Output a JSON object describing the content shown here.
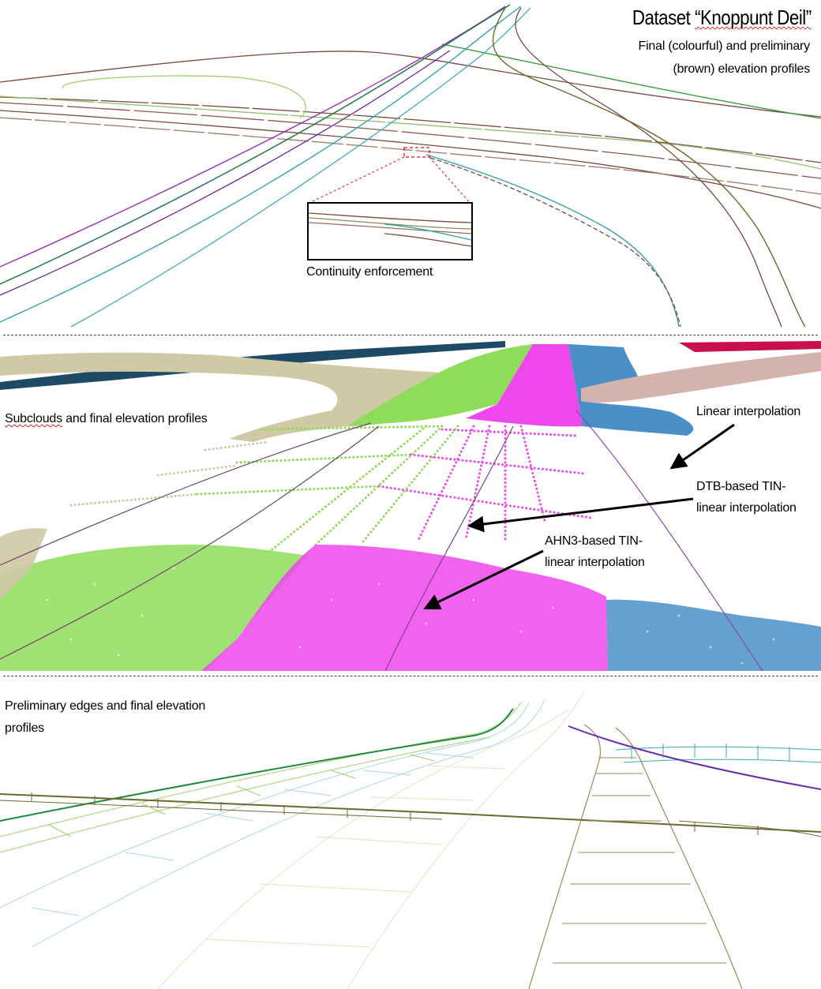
{
  "title": {
    "prefix": "Dataset ",
    "name": "“Knoppunt Deil”"
  },
  "subtitle": {
    "line1": "Final (colourful) and preliminary",
    "line2": "(brown) elevation profiles"
  },
  "top_panel": {
    "inset_label": "Continuity enforcement"
  },
  "middle_panel": {
    "section_label_word": "Subclouds",
    "section_label_rest": " and final elevation profiles",
    "annotations": {
      "linear": "Linear interpolation",
      "dtb_line1": "DTB-based TIN-",
      "dtb_line2": "linear interpolation",
      "ahn_line1": "AHN3-based TIN-",
      "ahn_line2": "linear interpolation"
    }
  },
  "bottom_panel": {
    "section_label_line1": "Preliminary edges and final elevation",
    "section_label_line2": "profiles"
  },
  "colors": {
    "preliminary_brown": "#7a4a42",
    "olive": "#6b6a2e",
    "purple": "#9b2fc0",
    "dark_green": "#1f7a4a",
    "teal": "#2aa0a8",
    "light_green": "#9fcf6a",
    "subcloud_beige": "#cfc9a6",
    "subcloud_green": "#8fdc5a",
    "subcloud_magenta": "#ee47ec",
    "subcloud_blue": "#4a90c6",
    "subcloud_pink": "#d5b3ad",
    "subcloud_navy": "#1e4a66",
    "subcloud_crimson": "#c8104f",
    "mesh_tan": "#9a8a5a",
    "mesh_lightblue": "#a8d8e6",
    "mesh_pale": "#dfe6c4",
    "mesh_teal": "#3fa9b5",
    "annotation_red": "#e01010"
  }
}
